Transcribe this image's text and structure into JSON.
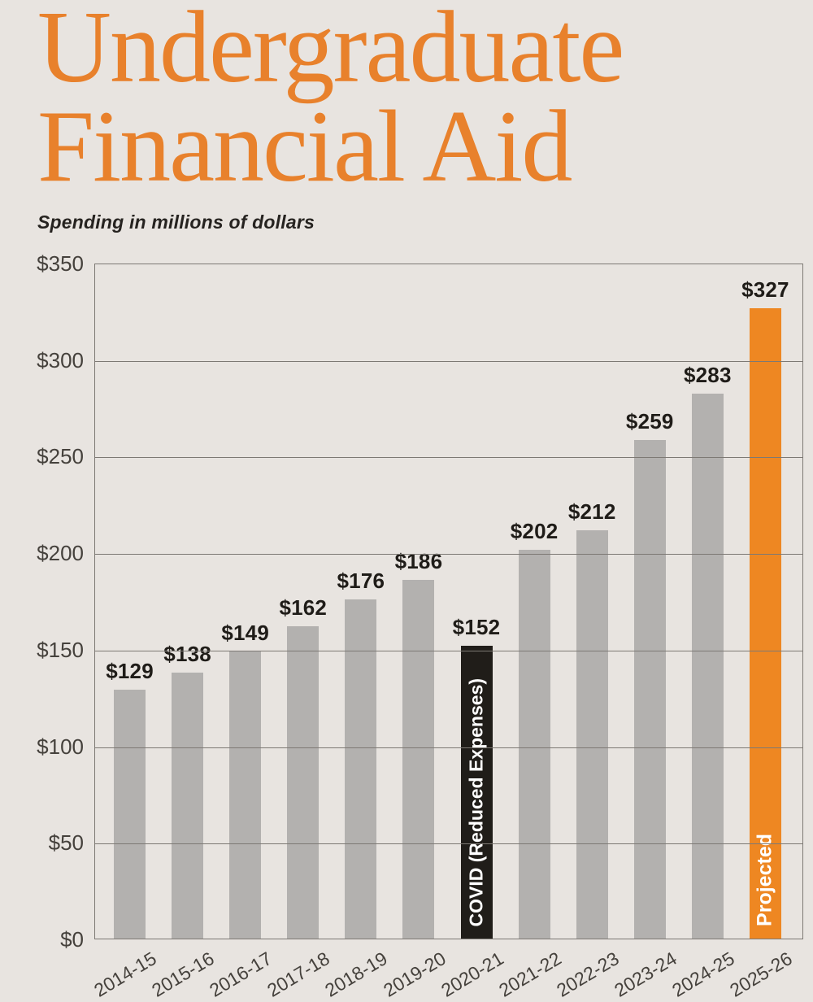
{
  "page": {
    "background": "#e8e4e0"
  },
  "header": {
    "title_line1": "Undergraduate",
    "title_line2": "Financial Aid",
    "subtitle": "Spending in millions of dollars"
  },
  "chart_data": {
    "type": "bar",
    "title": "Undergraduate Financial Aid",
    "subtitle": "Spending in millions of dollars",
    "xlabel": "",
    "ylabel": "",
    "ylim": [
      0,
      350
    ],
    "y_tick_step": 50,
    "y_tick_labels": [
      "$350",
      "$300",
      "$250",
      "$200",
      "$150",
      "$100",
      "$50",
      "$0"
    ],
    "grid": true,
    "legend_position": "none",
    "categories": [
      "2014-15",
      "2015-16",
      "2016-17",
      "2017-18",
      "2018-19",
      "2019-20",
      "2020-21",
      "2021-22",
      "2022-23",
      "2023-24",
      "2024-25",
      "2025-26"
    ],
    "values": [
      129,
      138,
      149,
      162,
      176,
      186,
      152,
      202,
      212,
      259,
      283,
      327
    ],
    "bars": [
      {
        "category": "2014-15",
        "value": 129,
        "value_label": "$129",
        "variant": "default",
        "bar_text": ""
      },
      {
        "category": "2015-16",
        "value": 138,
        "value_label": "$138",
        "variant": "default",
        "bar_text": ""
      },
      {
        "category": "2016-17",
        "value": 149,
        "value_label": "$149",
        "variant": "default",
        "bar_text": ""
      },
      {
        "category": "2017-18",
        "value": 162,
        "value_label": "$162",
        "variant": "default",
        "bar_text": ""
      },
      {
        "category": "2018-19",
        "value": 176,
        "value_label": "$176",
        "variant": "default",
        "bar_text": ""
      },
      {
        "category": "2019-20",
        "value": 186,
        "value_label": "$186",
        "variant": "default",
        "bar_text": ""
      },
      {
        "category": "2020-21",
        "value": 152,
        "value_label": "$152",
        "variant": "covid",
        "bar_text": "COVID (Reduced Expenses)"
      },
      {
        "category": "2021-22",
        "value": 202,
        "value_label": "$202",
        "variant": "default",
        "bar_text": ""
      },
      {
        "category": "2022-23",
        "value": 212,
        "value_label": "$212",
        "variant": "default",
        "bar_text": ""
      },
      {
        "category": "2023-24",
        "value": 259,
        "value_label": "$259",
        "variant": "default",
        "bar_text": ""
      },
      {
        "category": "2024-25",
        "value": 283,
        "value_label": "$283",
        "variant": "default",
        "bar_text": ""
      },
      {
        "category": "2025-26",
        "value": 327,
        "value_label": "$327",
        "variant": "projected",
        "bar_text": "Projected"
      }
    ],
    "colors": {
      "bar_default": "#b3b1af",
      "bar_covid": "#201d19",
      "bar_projected": "#ee8722",
      "bar_text": "#ffffff",
      "title": "#e8812c",
      "subtitle_text": "#262320",
      "grid_line": "#7d7974",
      "value_label": "#1f1c18",
      "axis_tick_label": "#45413c",
      "background": "#e8e4e0"
    }
  }
}
